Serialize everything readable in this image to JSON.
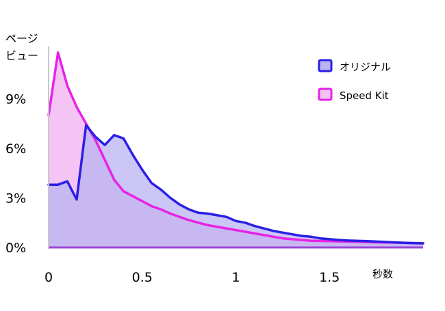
{
  "chart_data": {
    "type": "area",
    "ylabel_line1": "ページ",
    "ylabel_line2": "ビュー",
    "xlabel": "秒数",
    "xlim": [
      0,
      2.0
    ],
    "ylim": [
      0,
      12
    ],
    "x_ticks": [
      {
        "value": 0,
        "label": "0"
      },
      {
        "value": 0.5,
        "label": "0.5"
      },
      {
        "value": 1,
        "label": "1"
      },
      {
        "value": 1.5,
        "label": "1.5"
      }
    ],
    "y_ticks": [
      {
        "value": 0,
        "label": "0%"
      },
      {
        "value": 3,
        "label": "3%"
      },
      {
        "value": 6,
        "label": "6%"
      },
      {
        "value": 9,
        "label": "9%"
      }
    ],
    "legend_position": "top-right",
    "series": [
      {
        "name": "オリジナル",
        "stroke": "#2a1fe6",
        "fill": "#b9b3f2",
        "points": [
          [
            0.0,
            3.8
          ],
          [
            0.05,
            3.8
          ],
          [
            0.1,
            4.0
          ],
          [
            0.15,
            2.9
          ],
          [
            0.2,
            7.4
          ],
          [
            0.25,
            6.7
          ],
          [
            0.3,
            6.2
          ],
          [
            0.35,
            6.8
          ],
          [
            0.4,
            6.6
          ],
          [
            0.45,
            5.6
          ],
          [
            0.5,
            4.7
          ],
          [
            0.55,
            3.9
          ],
          [
            0.6,
            3.5
          ],
          [
            0.65,
            3.0
          ],
          [
            0.7,
            2.6
          ],
          [
            0.75,
            2.3
          ],
          [
            0.8,
            2.1
          ],
          [
            0.85,
            2.05
          ],
          [
            0.9,
            1.95
          ],
          [
            0.95,
            1.85
          ],
          [
            1.0,
            1.6
          ],
          [
            1.05,
            1.5
          ],
          [
            1.1,
            1.3
          ],
          [
            1.15,
            1.15
          ],
          [
            1.2,
            1.0
          ],
          [
            1.25,
            0.9
          ],
          [
            1.3,
            0.8
          ],
          [
            1.35,
            0.7
          ],
          [
            1.4,
            0.65
          ],
          [
            1.45,
            0.55
          ],
          [
            1.5,
            0.5
          ],
          [
            1.55,
            0.45
          ],
          [
            1.6,
            0.42
          ],
          [
            1.7,
            0.38
          ],
          [
            1.8,
            0.33
          ],
          [
            1.9,
            0.28
          ],
          [
            2.0,
            0.25
          ]
        ]
      },
      {
        "name": "Speed Kit",
        "stroke": "#e623e6",
        "fill": "#f3c2f3",
        "points": [
          [
            0.0,
            8.0
          ],
          [
            0.05,
            11.8
          ],
          [
            0.1,
            9.8
          ],
          [
            0.15,
            8.5
          ],
          [
            0.2,
            7.5
          ],
          [
            0.25,
            6.5
          ],
          [
            0.3,
            5.3
          ],
          [
            0.35,
            4.1
          ],
          [
            0.4,
            3.4
          ],
          [
            0.45,
            3.1
          ],
          [
            0.5,
            2.8
          ],
          [
            0.55,
            2.5
          ],
          [
            0.6,
            2.3
          ],
          [
            0.65,
            2.05
          ],
          [
            0.7,
            1.85
          ],
          [
            0.75,
            1.65
          ],
          [
            0.8,
            1.5
          ],
          [
            0.85,
            1.35
          ],
          [
            0.9,
            1.25
          ],
          [
            0.95,
            1.15
          ],
          [
            1.0,
            1.05
          ],
          [
            1.05,
            0.95
          ],
          [
            1.1,
            0.85
          ],
          [
            1.15,
            0.75
          ],
          [
            1.2,
            0.65
          ],
          [
            1.25,
            0.55
          ],
          [
            1.3,
            0.5
          ],
          [
            1.35,
            0.45
          ],
          [
            1.4,
            0.4
          ],
          [
            1.5,
            0.38
          ],
          [
            1.6,
            0.35
          ],
          [
            1.7,
            0.32
          ],
          [
            1.8,
            0.3
          ],
          [
            1.9,
            0.28
          ],
          [
            2.0,
            0.25
          ]
        ]
      }
    ]
  }
}
